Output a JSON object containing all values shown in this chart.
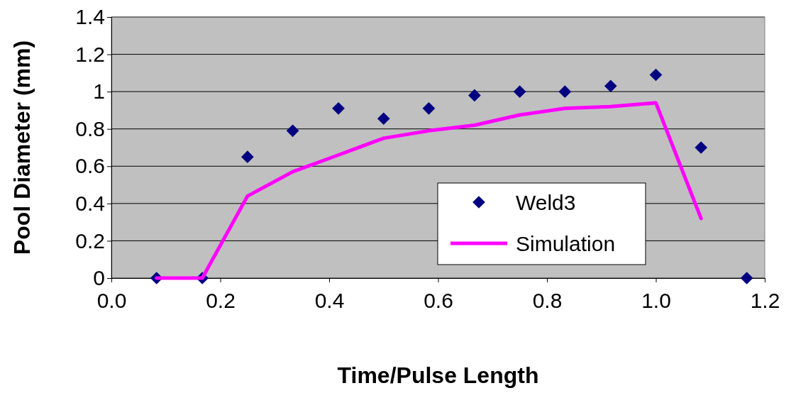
{
  "chart_data": {
    "type": "scatter",
    "xlabel": "Time/Pulse Length",
    "ylabel": "Pool Diameter (mm)",
    "xlim": [
      0,
      1.2
    ],
    "xticks": [
      {
        "value": 0,
        "label": "0.0"
      },
      0.2,
      0.4,
      0.6,
      0.8,
      {
        "value": 1,
        "label": "1.0"
      },
      1.2
    ],
    "ylim": [
      0,
      1.4
    ],
    "yticks": [
      0,
      0.2,
      0.4,
      0.6,
      0.8,
      1,
      1.2,
      1.4
    ],
    "grid": "y",
    "legend": "bottom right",
    "series": [
      {
        "name": "Weld3",
        "marker": "diamond",
        "color": "#000080",
        "x": [
          0.083,
          0.167,
          0.25,
          0.333,
          0.417,
          0.5,
          0.583,
          0.667,
          0.75,
          0.833,
          0.917,
          1.0,
          1.083,
          1.167
        ],
        "values": [
          0,
          0,
          0.65,
          0.79,
          0.91,
          0.855,
          0.91,
          0.98,
          1.0,
          1.0,
          1.03,
          1.09,
          0.7,
          0
        ]
      },
      {
        "name": "Simulation",
        "type": "line",
        "marker": "none",
        "line_style": "solid",
        "color": "#ff00ff",
        "x": [
          0.083,
          0.167,
          0.25,
          0.333,
          0.417,
          0.5,
          0.583,
          0.667,
          0.75,
          0.833,
          0.917,
          1.0,
          1.083
        ],
        "values": [
          0,
          0,
          0.44,
          0.57,
          0.66,
          0.75,
          0.79,
          0.82,
          0.875,
          0.91,
          0.92,
          0.94,
          0.32
        ]
      }
    ]
  }
}
